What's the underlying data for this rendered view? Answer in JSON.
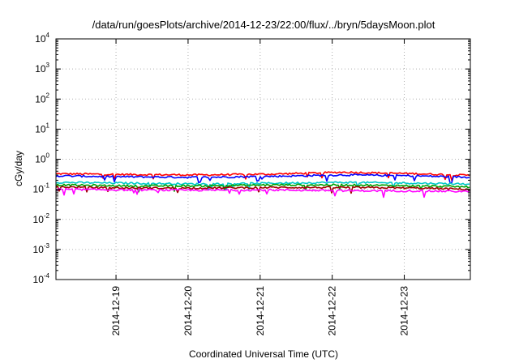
{
  "chart_data": {
    "type": "line",
    "title": "/data/run/goesPlots/archive/2014-12-23/22:00/flux/../bryn/5daysMoon.plot",
    "xlabel": "Coordinated Universal Time (UTC)",
    "ylabel": "cGy/day",
    "yscale": "log",
    "ylim": [
      0.0001,
      10000
    ],
    "xlim": [
      "2014-12-18T04:00",
      "2014-12-23T22:00"
    ],
    "x_ticks": [
      "2014-12-19",
      "2014-12-20",
      "2014-12-21",
      "2014-12-22",
      "2014-12-23"
    ],
    "y_ticks": [
      {
        "base": "10",
        "exp": "-4"
      },
      {
        "base": "10",
        "exp": "-3"
      },
      {
        "base": "10",
        "exp": "-2"
      },
      {
        "base": "10",
        "exp": "-1"
      },
      {
        "base": "10",
        "exp": "0"
      },
      {
        "base": "10",
        "exp": "1"
      },
      {
        "base": "10",
        "exp": "2"
      },
      {
        "base": "10",
        "exp": "3"
      },
      {
        "base": "10",
        "exp": "4"
      }
    ],
    "grid": true,
    "series": [
      {
        "color": "#ff0000",
        "x": [
          "2014-12-18T04:00",
          "2014-12-19T04:00",
          "2014-12-20T04:00",
          "2014-12-21T04:00",
          "2014-12-22T04:00",
          "2014-12-23T04:00",
          "2014-12-23T22:00"
        ],
        "values": [
          0.33,
          0.31,
          0.3,
          0.32,
          0.37,
          0.33,
          0.29
        ]
      },
      {
        "color": "#0000ff",
        "x": [
          "2014-12-18T04:00",
          "2014-12-19T04:00",
          "2014-12-20T04:00",
          "2014-12-21T04:00",
          "2014-12-22T04:00",
          "2014-12-23T04:00",
          "2014-12-23T22:00"
        ],
        "values": [
          0.28,
          0.26,
          0.25,
          0.27,
          0.3,
          0.28,
          0.25
        ]
      },
      {
        "color": "#00c8c8",
        "x": [
          "2014-12-18T04:00",
          "2014-12-19T04:00",
          "2014-12-20T04:00",
          "2014-12-21T04:00",
          "2014-12-22T04:00",
          "2014-12-23T04:00",
          "2014-12-23T22:00"
        ],
        "values": [
          0.17,
          0.16,
          0.15,
          0.16,
          0.17,
          0.16,
          0.15
        ]
      },
      {
        "color": "#00a000",
        "x": [
          "2014-12-18T04:00",
          "2014-12-19T04:00",
          "2014-12-20T04:00",
          "2014-12-21T04:00",
          "2014-12-22T04:00",
          "2014-12-23T04:00",
          "2014-12-23T22:00"
        ],
        "values": [
          0.14,
          0.13,
          0.13,
          0.14,
          0.14,
          0.13,
          0.12
        ]
      },
      {
        "color": "#a00000",
        "x": [
          "2014-12-18T04:00",
          "2014-12-19T04:00",
          "2014-12-20T04:00",
          "2014-12-21T04:00",
          "2014-12-22T04:00",
          "2014-12-23T04:00",
          "2014-12-23T22:00"
        ],
        "values": [
          0.12,
          0.11,
          0.11,
          0.115,
          0.115,
          0.11,
          0.1
        ]
      },
      {
        "color": "#ff00ff",
        "x": [
          "2014-12-18T04:00",
          "2014-12-19T04:00",
          "2014-12-20T04:00",
          "2014-12-21T04:00",
          "2014-12-22T04:00",
          "2014-12-23T04:00",
          "2014-12-23T22:00"
        ],
        "values": [
          0.1,
          0.095,
          0.093,
          0.095,
          0.09,
          0.088,
          0.085
        ]
      }
    ]
  }
}
